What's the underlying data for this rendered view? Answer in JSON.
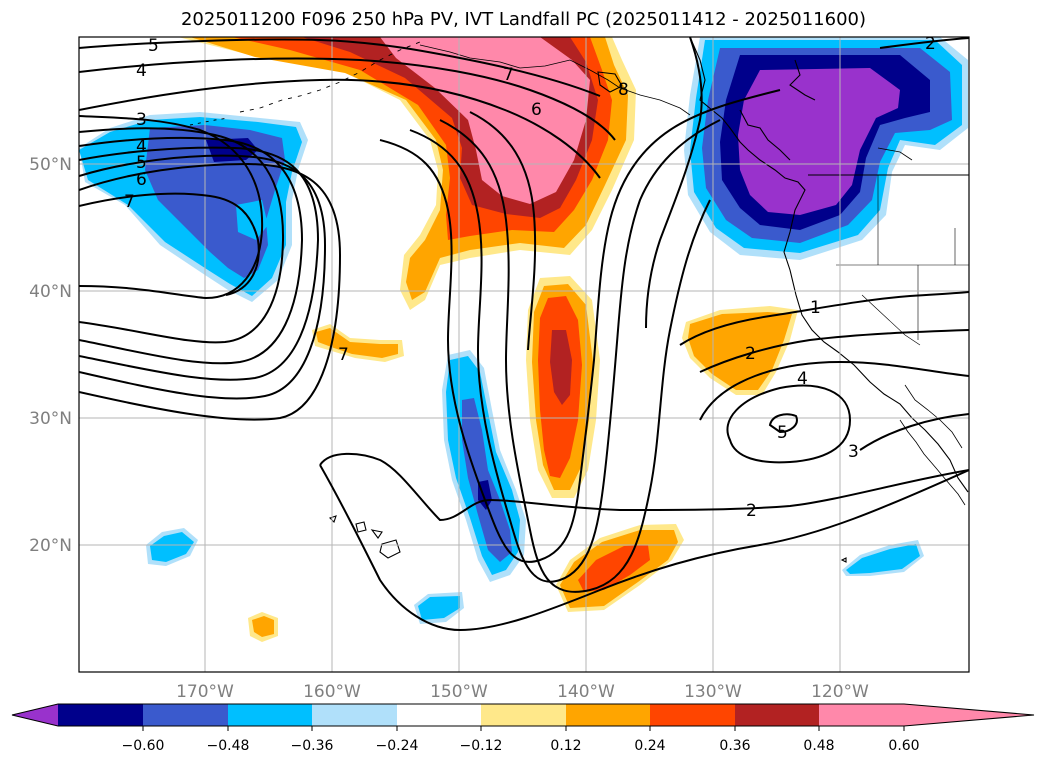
{
  "title": "2025011200 F096 250 hPa PV, IVT Landfall PC (2025011412 - 2025011600)",
  "map": {
    "extent": {
      "lon_min": -180,
      "lon_max": -110,
      "lat_min": 10,
      "lat_max": 60
    },
    "gridlines": true,
    "lat_ticks": [
      {
        "value": 20,
        "label": "20°N"
      },
      {
        "value": 30,
        "label": "30°N"
      },
      {
        "value": 40,
        "label": "40°N"
      },
      {
        "value": 50,
        "label": "50°N"
      }
    ],
    "lon_ticks": [
      {
        "value": -170,
        "label": "170°W"
      },
      {
        "value": -160,
        "label": "160°W"
      },
      {
        "value": -150,
        "label": "150°W"
      },
      {
        "value": -140,
        "label": "140°W"
      },
      {
        "value": -130,
        "label": "130°W"
      },
      {
        "value": -120,
        "label": "120°W"
      }
    ]
  },
  "colorbar": {
    "levels": [
      -0.6,
      -0.48,
      -0.36,
      -0.24,
      -0.12,
      0.12,
      0.24,
      0.36,
      0.48,
      0.6
    ],
    "tick_labels": [
      "−0.60",
      "−0.48",
      "−0.36",
      "−0.24",
      "−0.12",
      "0.12",
      "0.24",
      "0.36",
      "0.48",
      "0.60"
    ],
    "colors": [
      "#9932cc",
      "#00008b",
      "#3a5acd",
      "#00bfff",
      "#b0e0fa",
      "#ffffff",
      "#ffe88a",
      "#ffa500",
      "#ff4500",
      "#b22222",
      "#ff88aa"
    ],
    "extend": "both"
  },
  "contour_labels": [
    {
      "text": "5",
      "lon": -175.9,
      "lat": 59.2
    },
    {
      "text": "4",
      "lon": -176.8,
      "lat": 57.1
    },
    {
      "text": "3",
      "lon": -176.9,
      "lat": 53.6
    },
    {
      "text": "4",
      "lon": -176.9,
      "lat": 52.2
    },
    {
      "text": "5",
      "lon": -176.9,
      "lat": 50.7
    },
    {
      "text": "6",
      "lon": -176.9,
      "lat": 49.2
    },
    {
      "text": "7",
      "lon": -175.8,
      "lat": 47.5
    },
    {
      "text": "7",
      "lon": -146.1,
      "lat": 57.8
    },
    {
      "text": "6",
      "lon": -143.9,
      "lat": 55.2
    },
    {
      "text": "8",
      "lon": -137.2,
      "lat": 56.5
    },
    {
      "text": "7",
      "lon": -158.9,
      "lat": 35.4
    },
    {
      "text": "2",
      "lon": -111.2,
      "lat": 59.3
    },
    {
      "text": "1",
      "lon": -122.1,
      "lat": 38.9
    },
    {
      "text": "2",
      "lon": -126.9,
      "lat": 35.6
    },
    {
      "text": "4",
      "lon": -123.0,
      "lat": 32.8
    },
    {
      "text": "5",
      "lon": -125.4,
      "lat": 29.0
    },
    {
      "text": "3",
      "lon": -117.4,
      "lat": 26.9
    },
    {
      "text": "2",
      "lon": -127.1,
      "lat": 22.6
    }
  ],
  "pc_fields": [
    {
      "name": "alaska-positive-anomaly",
      "levels": [
        0.12,
        0.24,
        0.36,
        0.48,
        0.6
      ],
      "center": [
        -148,
        55
      ],
      "peak": 0.66
    },
    {
      "name": "pacific-nw-negative-anomaly",
      "levels": [
        -0.12,
        -0.24,
        -0.36,
        -0.48,
        -0.6
      ],
      "center": [
        -125,
        53
      ],
      "peak": -0.66
    },
    {
      "name": "west-pacific-negative-anomaly",
      "levels": [
        -0.12,
        -0.24,
        -0.36,
        -0.48
      ],
      "center": [
        -170,
        48
      ],
      "peak": -0.5
    },
    {
      "name": "subtropical-positive-band",
      "levels": [
        0.12,
        0.24,
        0.36,
        0.48
      ],
      "center": [
        -143,
        33
      ],
      "peak": 0.52
    },
    {
      "name": "subtropical-negative-band",
      "levels": [
        -0.12,
        -0.24,
        -0.36,
        -0.48
      ],
      "center": [
        -150,
        28
      ],
      "peak": -0.5
    },
    {
      "name": "california-positive-anomaly",
      "levels": [
        0.12,
        0.24
      ],
      "center": [
        -128,
        35
      ],
      "peak": 0.3
    },
    {
      "name": "hawaii-positive-anomaly",
      "levels": [
        0.12,
        0.24,
        0.36
      ],
      "center": [
        -138,
        17
      ],
      "peak": 0.4
    }
  ]
}
